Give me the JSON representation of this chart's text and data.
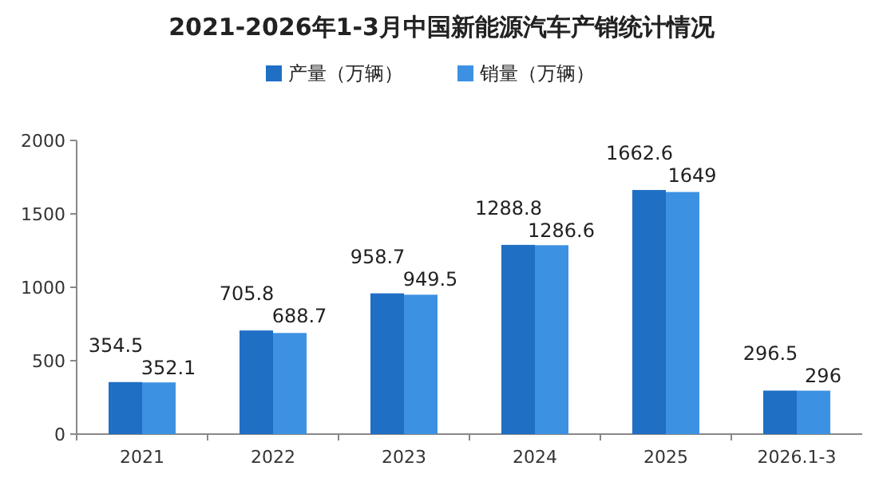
{
  "chart_data": {
    "type": "bar",
    "title": "2021-2026年1-3月中国新能源汽车产销统计情况",
    "categories": [
      "2021",
      "2022",
      "2023",
      "2024",
      "2025",
      "2026.1-3"
    ],
    "series": [
      {
        "name": "产量（万辆）",
        "color": "#1f6fc5",
        "values": [
          354.5,
          705.8,
          958.7,
          1288.8,
          1662.6,
          296.5
        ]
      },
      {
        "name": "销量（万辆）",
        "color": "#3d91e3",
        "values": [
          352.1,
          688.7,
          949.5,
          1286.6,
          1649,
          296
        ]
      }
    ],
    "ylim": [
      0,
      2000
    ],
    "yticks": [
      0,
      500,
      1000,
      1500,
      2000
    ],
    "grid": false,
    "legend": "top",
    "data_labels": true
  }
}
